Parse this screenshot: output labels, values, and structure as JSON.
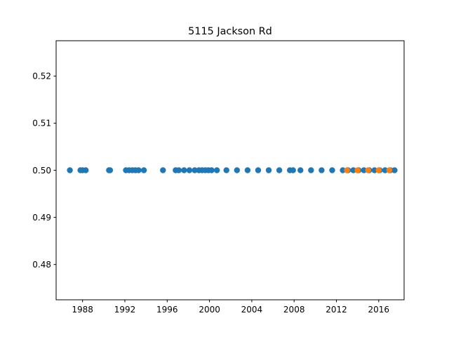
{
  "chart_data": {
    "type": "scatter",
    "title": "5115 Jackson Rd",
    "xlabel": "",
    "ylabel": "",
    "xlim": [
      1985.5,
      2018.4
    ],
    "ylim": [
      0.4725,
      0.5275
    ],
    "xticks": [
      1988,
      1992,
      1996,
      2000,
      2004,
      2008,
      2012,
      2016
    ],
    "yticks": [
      0.48,
      0.49,
      0.5,
      0.51,
      0.52
    ],
    "ytick_labels": [
      "0.48",
      "0.49",
      "0.50",
      "0.51",
      "0.52"
    ],
    "grid": false,
    "series": [
      {
        "color": "#1f77b4",
        "points": [
          [
            1986.8,
            0.5
          ],
          [
            1987.8,
            0.5
          ],
          [
            1988.0,
            0.5
          ],
          [
            1988.3,
            0.5
          ],
          [
            1990.5,
            0.5
          ],
          [
            1990.6,
            0.5
          ],
          [
            1992.1,
            0.5
          ],
          [
            1992.4,
            0.5
          ],
          [
            1992.7,
            0.5
          ],
          [
            1993.0,
            0.5
          ],
          [
            1993.3,
            0.5
          ],
          [
            1993.8,
            0.5
          ],
          [
            1995.6,
            0.5
          ],
          [
            1996.8,
            0.5
          ],
          [
            1997.1,
            0.5
          ],
          [
            1997.6,
            0.5
          ],
          [
            1998.1,
            0.5
          ],
          [
            1998.6,
            0.5
          ],
          [
            1999.0,
            0.5
          ],
          [
            1999.3,
            0.5
          ],
          [
            1999.6,
            0.5
          ],
          [
            1999.9,
            0.5
          ],
          [
            2000.2,
            0.5
          ],
          [
            2000.7,
            0.5
          ],
          [
            2001.6,
            0.5
          ],
          [
            2002.6,
            0.5
          ],
          [
            2003.6,
            0.5
          ],
          [
            2004.6,
            0.5
          ],
          [
            2005.6,
            0.5
          ],
          [
            2006.6,
            0.5
          ],
          [
            2007.6,
            0.5
          ],
          [
            2007.9,
            0.5
          ],
          [
            2008.6,
            0.5
          ],
          [
            2009.6,
            0.5
          ],
          [
            2010.6,
            0.5
          ],
          [
            2011.6,
            0.5
          ],
          [
            2012.6,
            0.5
          ],
          [
            2013.1,
            0.5
          ],
          [
            2013.6,
            0.5
          ],
          [
            2014.1,
            0.5
          ],
          [
            2014.6,
            0.5
          ],
          [
            2015.1,
            0.5
          ],
          [
            2015.6,
            0.5
          ],
          [
            2016.1,
            0.5
          ],
          [
            2016.6,
            0.5
          ],
          [
            2017.1,
            0.5
          ],
          [
            2017.5,
            0.5
          ]
        ]
      },
      {
        "color": "#ff7f0e",
        "points": [
          [
            2013.0,
            0.5
          ],
          [
            2014.0,
            0.5
          ],
          [
            2015.0,
            0.5
          ],
          [
            2016.0,
            0.5
          ],
          [
            2017.0,
            0.5
          ]
        ]
      }
    ]
  }
}
